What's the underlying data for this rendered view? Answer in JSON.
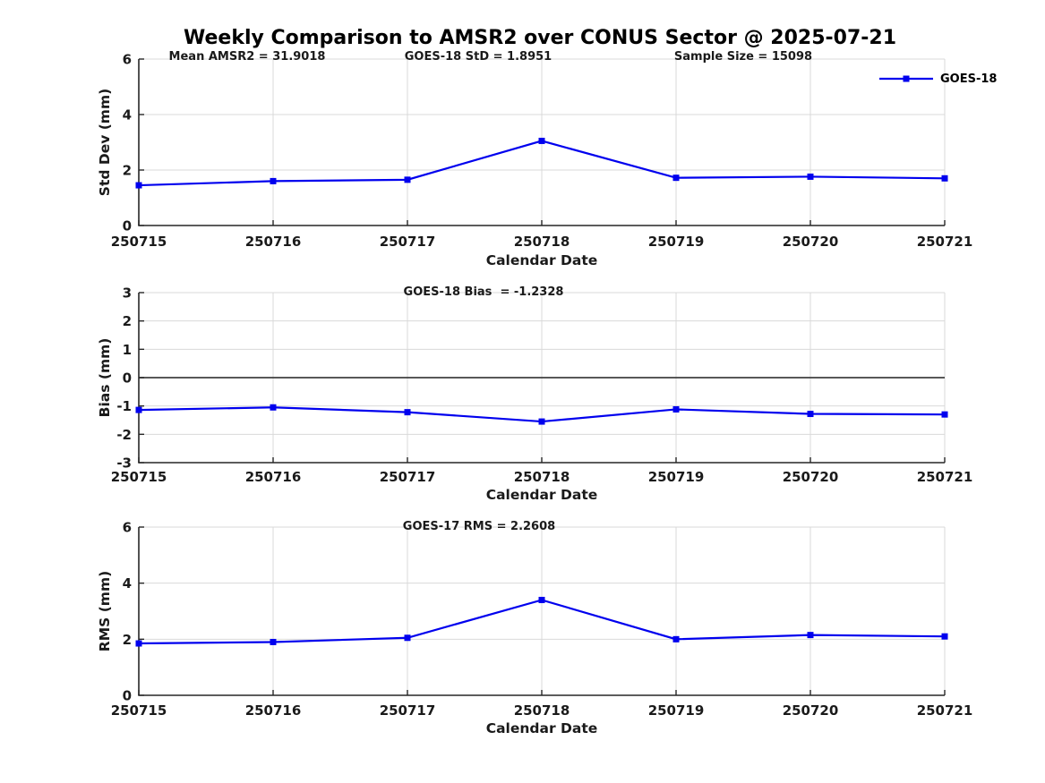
{
  "title": "Weekly Comparison to AMSR2 over CONUS Sector @ 2025-07-21",
  "legend": {
    "label": "GOES-18"
  },
  "colors": {
    "line": "#0000ee",
    "grid": "#d9d9d9",
    "axis": "#262626",
    "zero_line": "#404040",
    "background": "#ffffff"
  },
  "chart_data": [
    {
      "type": "line",
      "ylabel": "Std Dev (mm)",
      "xlabel": "Calendar Date",
      "ylim": [
        0,
        6
      ],
      "yticks": [
        0,
        2,
        4,
        6
      ],
      "grid": true,
      "legend_position": "top-right",
      "categories": [
        "250715",
        "250716",
        "250717",
        "250718",
        "250719",
        "250720",
        "250721"
      ],
      "series": [
        {
          "name": "GOES-18",
          "values": [
            1.45,
            1.6,
            1.65,
            3.05,
            1.72,
            1.76,
            1.7
          ]
        }
      ],
      "annotations": [
        {
          "text": "Mean AMSR2 = 31.9018"
        },
        {
          "text": "GOES-18 StD = 1.8951"
        },
        {
          "text": "Sample Size = 15098"
        }
      ]
    },
    {
      "type": "line",
      "ylabel": "Bias (mm)",
      "xlabel": "Calendar Date",
      "ylim": [
        -3,
        3
      ],
      "yticks": [
        3,
        2,
        1,
        0,
        -1,
        -2,
        -3
      ],
      "grid": true,
      "zero_line": true,
      "categories": [
        "250715",
        "250716",
        "250717",
        "250718",
        "250719",
        "250720",
        "250721"
      ],
      "series": [
        {
          "name": "GOES-18",
          "values": [
            -1.14,
            -1.05,
            -1.22,
            -1.55,
            -1.12,
            -1.28,
            -1.3
          ]
        }
      ],
      "annotations": [
        {
          "text": "GOES-18 Bias  = -1.2328"
        }
      ]
    },
    {
      "type": "line",
      "ylabel": "RMS (mm)",
      "xlabel": "Calendar Date",
      "ylim": [
        0,
        6
      ],
      "yticks": [
        0,
        2,
        4,
        6
      ],
      "grid": true,
      "categories": [
        "250715",
        "250716",
        "250717",
        "250718",
        "250719",
        "250720",
        "250721"
      ],
      "series": [
        {
          "name": "GOES-18",
          "values": [
            1.85,
            1.9,
            2.05,
            3.4,
            2.0,
            2.15,
            2.1
          ]
        }
      ],
      "annotations": [
        {
          "text": "GOES-17 RMS = 2.2608"
        }
      ]
    }
  ]
}
